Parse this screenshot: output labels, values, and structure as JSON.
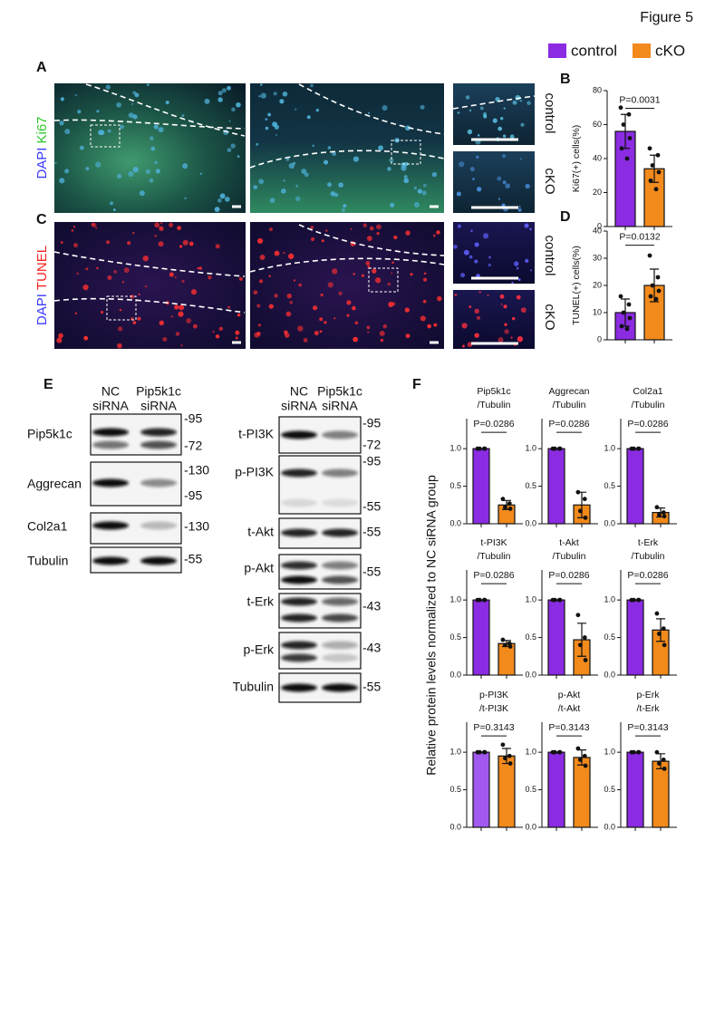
{
  "figure": {
    "title": "Figure 5",
    "panel_labels": [
      "A",
      "B",
      "C",
      "D",
      "E",
      "F"
    ]
  },
  "images": [
    {
      "stain": [
        "DAPI",
        "Ki67"
      ],
      "stain_colors": [
        "#3a3aff",
        "#2ec82e"
      ],
      "rows": [
        "control",
        "cKO"
      ]
    },
    {
      "stain": [
        "DAPI",
        "TUNEL"
      ],
      "stain_colors": [
        "#3a3aff",
        "#ff2020"
      ],
      "rows": [
        "control",
        "cKO"
      ]
    }
  ],
  "blots": [
    {
      "headers": [
        [
          "NC",
          "siRNA"
        ],
        [
          "Pip5k1c",
          "siRNA"
        ]
      ],
      "rows": [
        {
          "label": "Pip5k1c",
          "markers": [
            "-95",
            "-72"
          ]
        },
        {
          "label": "Aggrecan",
          "markers": [
            "-130",
            "-95"
          ]
        },
        {
          "label": "Col2a1",
          "markers": [
            "-130"
          ]
        },
        {
          "label": "Tubulin",
          "markers": [
            "-55"
          ]
        }
      ]
    },
    {
      "headers": [
        [
          "NC",
          "siRNA"
        ],
        [
          "Pip5k1c",
          "siRNA"
        ]
      ],
      "rows": [
        {
          "label": "t-PI3K",
          "markers": [
            "-95",
            "-72"
          ]
        },
        {
          "label": "p-PI3K",
          "markers": [
            "-95",
            "-55"
          ]
        },
        {
          "label": "t-Akt",
          "markers": [
            "-55"
          ]
        },
        {
          "label": "p-Akt",
          "markers": [
            "-55"
          ]
        },
        {
          "label": "t-Erk",
          "markers": [
            "-43"
          ]
        },
        {
          "label": "p-Erk",
          "markers": [
            "-43"
          ]
        },
        {
          "label": "Tubulin",
          "markers": [
            "-55"
          ]
        }
      ]
    }
  ],
  "f_ylabel": "Relative protein levels normalized to NC siRNA group",
  "chart_data": [
    {
      "type": "bar",
      "ylabel": "Ki67(+) cells(%)",
      "annotation": "P=0.0031",
      "ylim": [
        0,
        80
      ],
      "yticks": [
        0,
        20,
        40,
        60,
        80
      ],
      "series": [
        {
          "name": "control",
          "color": "#8b2be2",
          "values": [
            56
          ],
          "errors": [
            10
          ],
          "points": [
            70,
            66,
            60,
            52,
            46,
            40
          ]
        },
        {
          "name": "cKO",
          "color": "#f28a1c",
          "values": [
            34
          ],
          "errors": [
            8
          ],
          "points": [
            46,
            42,
            36,
            32,
            27,
            22
          ]
        }
      ]
    },
    {
      "type": "bar",
      "ylabel": "TUNEL(+) cells(%)",
      "annotation": "P=0.0132",
      "ylim": [
        0,
        40
      ],
      "yticks": [
        0,
        10,
        20,
        30,
        40
      ],
      "series": [
        {
          "color": "#8b2be2",
          "values": [
            10
          ],
          "errors": [
            5
          ],
          "points": [
            16,
            13,
            10,
            8,
            5,
            4
          ]
        },
        {
          "color": "#f28a1c",
          "values": [
            20
          ],
          "errors": [
            6
          ],
          "points": [
            31,
            23,
            20,
            18,
            16,
            15
          ]
        }
      ]
    },
    {
      "type": "bar",
      "title": [
        "Pip5k1c",
        "/Tubulin"
      ],
      "annotation": "P=0.0286",
      "ylim": [
        0,
        1.4
      ],
      "yticks": [
        {
          "value": 0,
          "label": "0.0"
        },
        0.5,
        {
          "value": 1,
          "label": "1.0"
        }
      ],
      "series": [
        {
          "color": "#8b2be2",
          "values": [
            1
          ],
          "errors": [
            0
          ],
          "points": [
            1,
            1,
            1,
            1
          ]
        },
        {
          "color": "#f28a1c",
          "values": [
            0.25
          ],
          "errors": [
            0.06
          ],
          "points": [
            0.33,
            0.27,
            0.22,
            0.2
          ]
        }
      ]
    },
    {
      "type": "bar",
      "title": [
        "Aggrecan",
        "/Tubulin"
      ],
      "annotation": "P=0.0286",
      "ylim": [
        0,
        1.4
      ],
      "yticks": [
        {
          "value": 0,
          "label": "0.0"
        },
        0.5,
        {
          "value": 1,
          "label": "1.0"
        }
      ],
      "series": [
        {
          "color": "#8b2be2",
          "values": [
            1
          ],
          "errors": [
            0
          ],
          "points": [
            1,
            1,
            1,
            1
          ]
        },
        {
          "color": "#f28a1c",
          "values": [
            0.25
          ],
          "errors": [
            0.17
          ],
          "points": [
            0.42,
            0.33,
            0.17,
            0.08
          ]
        }
      ]
    },
    {
      "type": "bar",
      "title": [
        "Col2a1",
        "/Tubulin"
      ],
      "annotation": "P=0.0286",
      "ylim": [
        0,
        1.4
      ],
      "yticks": [
        {
          "value": 0,
          "label": "0.0"
        },
        0.5,
        {
          "value": 1,
          "label": "1.0"
        }
      ],
      "series": [
        {
          "color": "#8b2be2",
          "values": [
            1
          ],
          "errors": [
            0
          ],
          "points": [
            1,
            1,
            1,
            1
          ]
        },
        {
          "color": "#f28a1c",
          "values": [
            0.15
          ],
          "errors": [
            0.06
          ],
          "points": [
            0.22,
            0.15,
            0.12,
            0.1
          ]
        }
      ]
    },
    {
      "type": "bar",
      "title": [
        "t-PI3K",
        "/Tubulin"
      ],
      "annotation": "P=0.0286",
      "ylim": [
        0,
        1.4
      ],
      "yticks": [
        {
          "value": 0,
          "label": "0.0"
        },
        0.5,
        {
          "value": 1,
          "label": "1.0"
        }
      ],
      "series": [
        {
          "color": "#8b2be2",
          "values": [
            1
          ],
          "errors": [
            0
          ],
          "points": [
            1,
            1,
            1,
            1
          ]
        },
        {
          "color": "#f28a1c",
          "values": [
            0.42
          ],
          "errors": [
            0.04
          ],
          "points": [
            0.47,
            0.42,
            0.4,
            0.38
          ]
        }
      ]
    },
    {
      "type": "bar",
      "title": [
        "t-Akt",
        "/Tubulin"
      ],
      "annotation": "P=0.0286",
      "ylim": [
        0,
        1.4
      ],
      "yticks": [
        {
          "value": 0,
          "label": "0.0"
        },
        0.5,
        {
          "value": 1,
          "label": "1.0"
        }
      ],
      "series": [
        {
          "color": "#8b2be2",
          "values": [
            1
          ],
          "errors": [
            0
          ],
          "points": [
            1,
            1,
            1,
            1
          ]
        },
        {
          "color": "#f28a1c",
          "values": [
            0.47
          ],
          "errors": [
            0.22
          ],
          "points": [
            0.8,
            0.5,
            0.4,
            0.2
          ]
        }
      ]
    },
    {
      "type": "bar",
      "title": [
        "t-Erk",
        "/Tubulin"
      ],
      "annotation": "P=0.0286",
      "ylim": [
        0,
        1.4
      ],
      "yticks": [
        {
          "value": 0,
          "label": "0.0"
        },
        0.5,
        {
          "value": 1,
          "label": "1.0"
        }
      ],
      "series": [
        {
          "color": "#8b2be2",
          "values": [
            1
          ],
          "errors": [
            0
          ],
          "points": [
            1,
            1,
            1,
            1
          ]
        },
        {
          "color": "#f28a1c",
          "values": [
            0.6
          ],
          "errors": [
            0.15
          ],
          "points": [
            0.82,
            0.62,
            0.55,
            0.4
          ]
        }
      ]
    },
    {
      "type": "bar",
      "title": [
        "p-PI3K",
        "/t-PI3K"
      ],
      "annotation": "P=0.3143",
      "ylim": [
        0,
        1.4
      ],
      "yticks": [
        {
          "value": 0,
          "label": "0.0"
        },
        0.5,
        {
          "value": 1,
          "label": "1.0"
        }
      ],
      "series": [
        {
          "color": "#a259f0",
          "values": [
            1
          ],
          "errors": [
            0
          ],
          "points": [
            1,
            1,
            1,
            1
          ]
        },
        {
          "color": "#f28a1c",
          "values": [
            0.95
          ],
          "errors": [
            0.1
          ],
          "points": [
            1.1,
            0.95,
            0.92,
            0.85
          ]
        }
      ]
    },
    {
      "type": "bar",
      "title": [
        "p-Akt",
        "/t-Akt"
      ],
      "annotation": "P=0.3143",
      "ylim": [
        0,
        1.4
      ],
      "yticks": [
        {
          "value": 0,
          "label": "0.0"
        },
        0.5,
        {
          "value": 1,
          "label": "1.0"
        }
      ],
      "series": [
        {
          "color": "#8b2be2",
          "values": [
            1
          ],
          "errors": [
            0
          ],
          "points": [
            1,
            1,
            1,
            1
          ]
        },
        {
          "color": "#f28a1c",
          "values": [
            0.93
          ],
          "errors": [
            0.1
          ],
          "points": [
            1.05,
            0.95,
            0.9,
            0.82
          ]
        }
      ]
    },
    {
      "type": "bar",
      "title": [
        "p-Erk",
        "/t-Erk"
      ],
      "annotation": "P=0.3143",
      "ylim": [
        0,
        1.4
      ],
      "yticks": [
        {
          "value": 0,
          "label": "0.0"
        },
        0.5,
        {
          "value": 1,
          "label": "1.0"
        }
      ],
      "series": [
        {
          "color": "#8b2be2",
          "values": [
            1
          ],
          "errors": [
            0
          ],
          "points": [
            1,
            1,
            1,
            1
          ]
        },
        {
          "color": "#f28a1c",
          "values": [
            0.88
          ],
          "errors": [
            0.1
          ],
          "points": [
            1.0,
            0.9,
            0.85,
            0.78
          ]
        }
      ]
    }
  ]
}
